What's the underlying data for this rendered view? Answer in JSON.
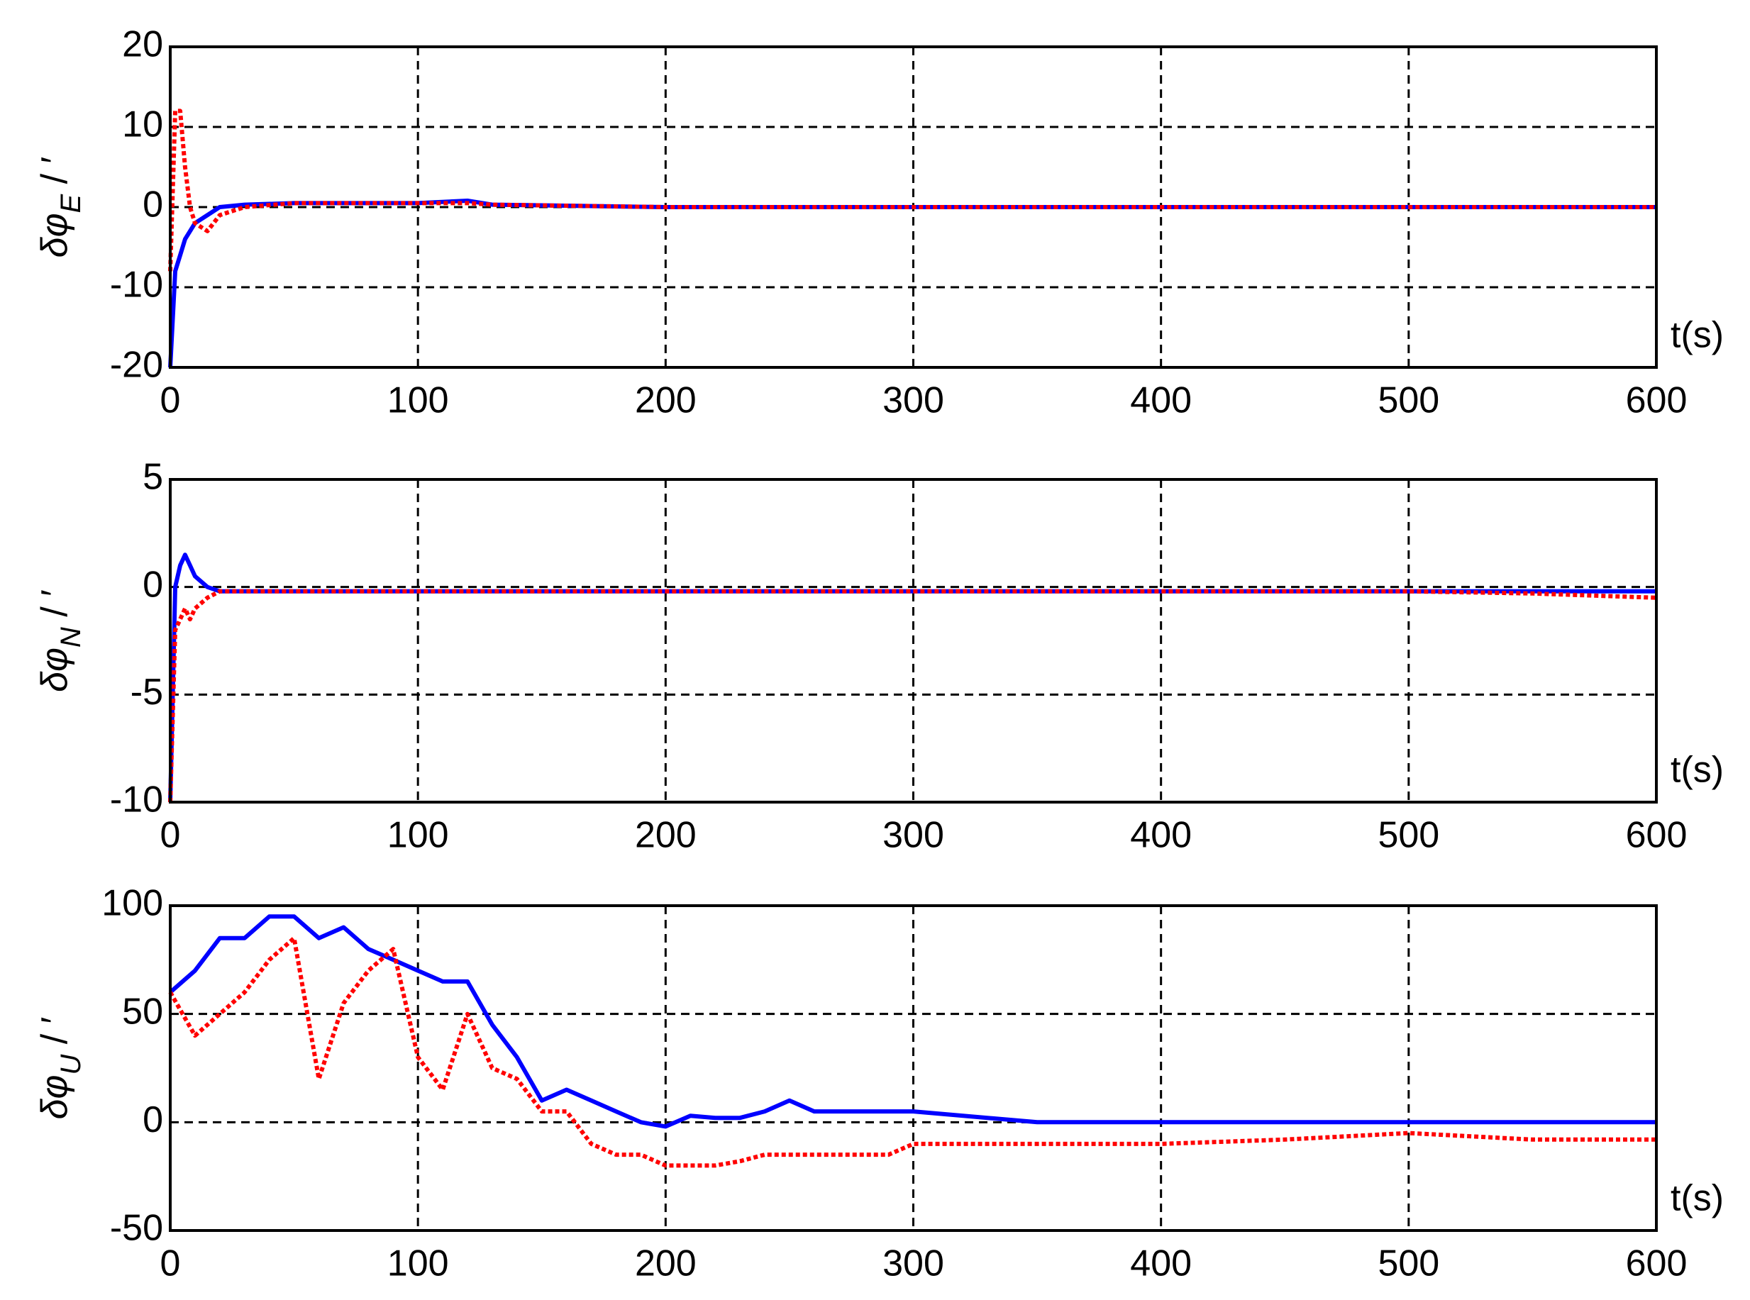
{
  "chart_data": [
    {
      "type": "line",
      "ylabel": "δφ",
      "ylabel_subscript": "E",
      "ylabel_unit": " / ′",
      "xlabel": "t(s)",
      "x": [
        0,
        2,
        4,
        6,
        8,
        10,
        15,
        20,
        30,
        50,
        100,
        120,
        130,
        200,
        300,
        400,
        500,
        600
      ],
      "series": [
        {
          "color": "#0000ff",
          "style": "solid",
          "values": [
            -20,
            -8,
            -6,
            -4,
            -3,
            -2,
            -1,
            0,
            0.3,
            0.5,
            0.5,
            0.8,
            0.3,
            0,
            0,
            0,
            0,
            0
          ]
        },
        {
          "color": "#ff0000",
          "style": "dotted",
          "values": [
            -8,
            12,
            12,
            5,
            0,
            -2,
            -3,
            -1,
            0,
            0.5,
            0.5,
            0.5,
            0.3,
            0,
            0,
            0,
            0,
            0
          ]
        }
      ],
      "xlim": [
        0,
        600
      ],
      "xticks": [
        0,
        100,
        200,
        300,
        400,
        500,
        600
      ],
      "ylim": [
        -20,
        20
      ],
      "yticks": [
        -20,
        -10,
        0,
        10,
        20
      ],
      "grid": true
    },
    {
      "type": "line",
      "ylabel": "δφ",
      "ylabel_subscript": "N",
      "ylabel_unit": " / ′",
      "xlabel": "t(s)",
      "x": [
        0,
        2,
        4,
        6,
        8,
        10,
        15,
        20,
        50,
        100,
        200,
        300,
        400,
        500,
        550,
        600
      ],
      "series": [
        {
          "color": "#0000ff",
          "style": "solid",
          "values": [
            -10,
            0,
            1,
            1.5,
            1,
            0.5,
            0,
            -0.2,
            -0.2,
            -0.2,
            -0.2,
            -0.2,
            -0.2,
            -0.2,
            -0.2,
            -0.2
          ]
        },
        {
          "color": "#ff0000",
          "style": "dotted",
          "values": [
            -10,
            -2,
            -1.5,
            -1,
            -1.5,
            -1,
            -0.5,
            -0.2,
            -0.2,
            -0.2,
            -0.2,
            -0.2,
            -0.2,
            -0.2,
            -0.3,
            -0.5
          ]
        }
      ],
      "xlim": [
        0,
        600
      ],
      "xticks": [
        0,
        100,
        200,
        300,
        400,
        500,
        600
      ],
      "ylim": [
        -10,
        5
      ],
      "yticks": [
        -10,
        -5,
        0,
        5
      ],
      "grid": true
    },
    {
      "type": "line",
      "ylabel": "δφ",
      "ylabel_subscript": "U",
      "ylabel_unit": " / ′",
      "xlabel": "t(s)",
      "x": [
        0,
        10,
        20,
        30,
        40,
        50,
        60,
        70,
        80,
        90,
        100,
        110,
        120,
        130,
        140,
        150,
        160,
        170,
        180,
        190,
        200,
        210,
        220,
        230,
        240,
        250,
        260,
        270,
        280,
        290,
        300,
        350,
        400,
        450,
        500,
        550,
        600
      ],
      "series": [
        {
          "color": "#0000ff",
          "style": "solid",
          "values": [
            60,
            70,
            85,
            85,
            95,
            95,
            85,
            90,
            80,
            75,
            70,
            65,
            65,
            45,
            30,
            10,
            15,
            10,
            5,
            0,
            -2,
            3,
            2,
            2,
            5,
            10,
            5,
            5,
            5,
            5,
            5,
            0,
            0,
            0,
            0,
            0,
            0
          ]
        },
        {
          "color": "#ff0000",
          "style": "dotted",
          "values": [
            60,
            40,
            50,
            60,
            75,
            85,
            20,
            55,
            70,
            80,
            30,
            15,
            50,
            25,
            20,
            5,
            5,
            -10,
            -15,
            -15,
            -20,
            -20,
            -20,
            -18,
            -15,
            -15,
            -15,
            -15,
            -15,
            -15,
            -10,
            -10,
            -10,
            -8,
            -5,
            -8,
            -8
          ]
        }
      ],
      "xlim": [
        0,
        600
      ],
      "xticks": [
        0,
        100,
        200,
        300,
        400,
        500,
        600
      ],
      "ylim": [
        -50,
        100
      ],
      "yticks": [
        -50,
        0,
        50,
        100
      ],
      "grid": true
    }
  ]
}
